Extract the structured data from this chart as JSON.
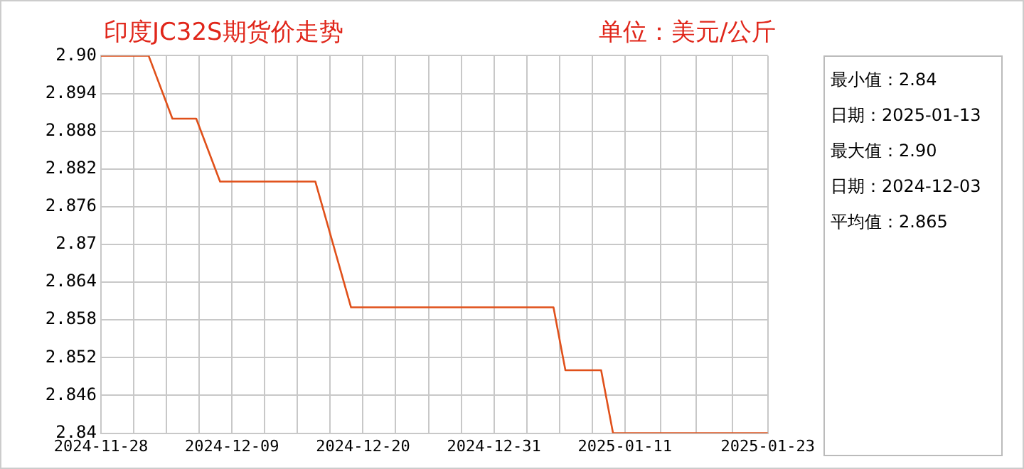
{
  "chart_data": {
    "type": "line",
    "title": "印度JC32S期货价走势",
    "subtitle": "单位：美元/公斤",
    "x": [
      "2024-11-28",
      "2024-12-02",
      "2024-12-04",
      "2024-12-06",
      "2024-12-08",
      "2024-12-16",
      "2024-12-19",
      "2025-01-05",
      "2025-01-06",
      "2025-01-09",
      "2025-01-10",
      "2025-01-23"
    ],
    "values": [
      2.9,
      2.9,
      2.89,
      2.89,
      2.88,
      2.88,
      2.86,
      2.86,
      2.85,
      2.85,
      2.84,
      2.84
    ],
    "color": "#e0501a",
    "xlim": [
      "2024-11-28",
      "2025-01-23"
    ],
    "xticks": [
      {
        "value": "2024-11-28",
        "label": "2024-11-28"
      },
      {
        "value": "2024-11-30T18:00",
        "label": null
      },
      {
        "value": "2024-12-03T12:00",
        "label": null
      },
      {
        "value": "2024-12-06T06:00",
        "label": null
      },
      {
        "value": "2024-12-09",
        "label": "2024-12-09"
      },
      {
        "value": "2024-12-11T18:00",
        "label": null
      },
      {
        "value": "2024-12-14T12:00",
        "label": null
      },
      {
        "value": "2024-12-17T06:00",
        "label": null
      },
      {
        "value": "2024-12-20",
        "label": "2024-12-20"
      },
      {
        "value": "2024-12-22T18:00",
        "label": null
      },
      {
        "value": "2024-12-25T12:00",
        "label": null
      },
      {
        "value": "2024-12-28T06:00",
        "label": null
      },
      {
        "value": "2024-12-31",
        "label": "2024-12-31"
      },
      {
        "value": "2025-01-02T18:00",
        "label": null
      },
      {
        "value": "2025-01-05T12:00",
        "label": null
      },
      {
        "value": "2025-01-08T06:00",
        "label": null
      },
      {
        "value": "2025-01-11",
        "label": "2025-01-11"
      },
      {
        "value": "2025-01-14",
        "label": null
      },
      {
        "value": "2025-01-17",
        "label": null
      },
      {
        "value": "2025-01-20",
        "label": null
      },
      {
        "value": "2025-01-23",
        "label": "2025-01-23"
      }
    ],
    "ylim": [
      2.84,
      2.9
    ],
    "yticks": [
      2.84,
      2.846,
      2.852,
      2.858,
      2.864,
      2.87,
      2.876,
      2.882,
      2.888,
      2.894,
      {
        "value": 2.9,
        "label": "2.90"
      }
    ],
    "grid": true,
    "marker": "none",
    "line_style": "solid",
    "annotations": [
      "最小值：2.84",
      "日期：2025-01-13",
      "最大值：2.90",
      "日期：2024-12-03",
      "平均值：2.865"
    ]
  }
}
